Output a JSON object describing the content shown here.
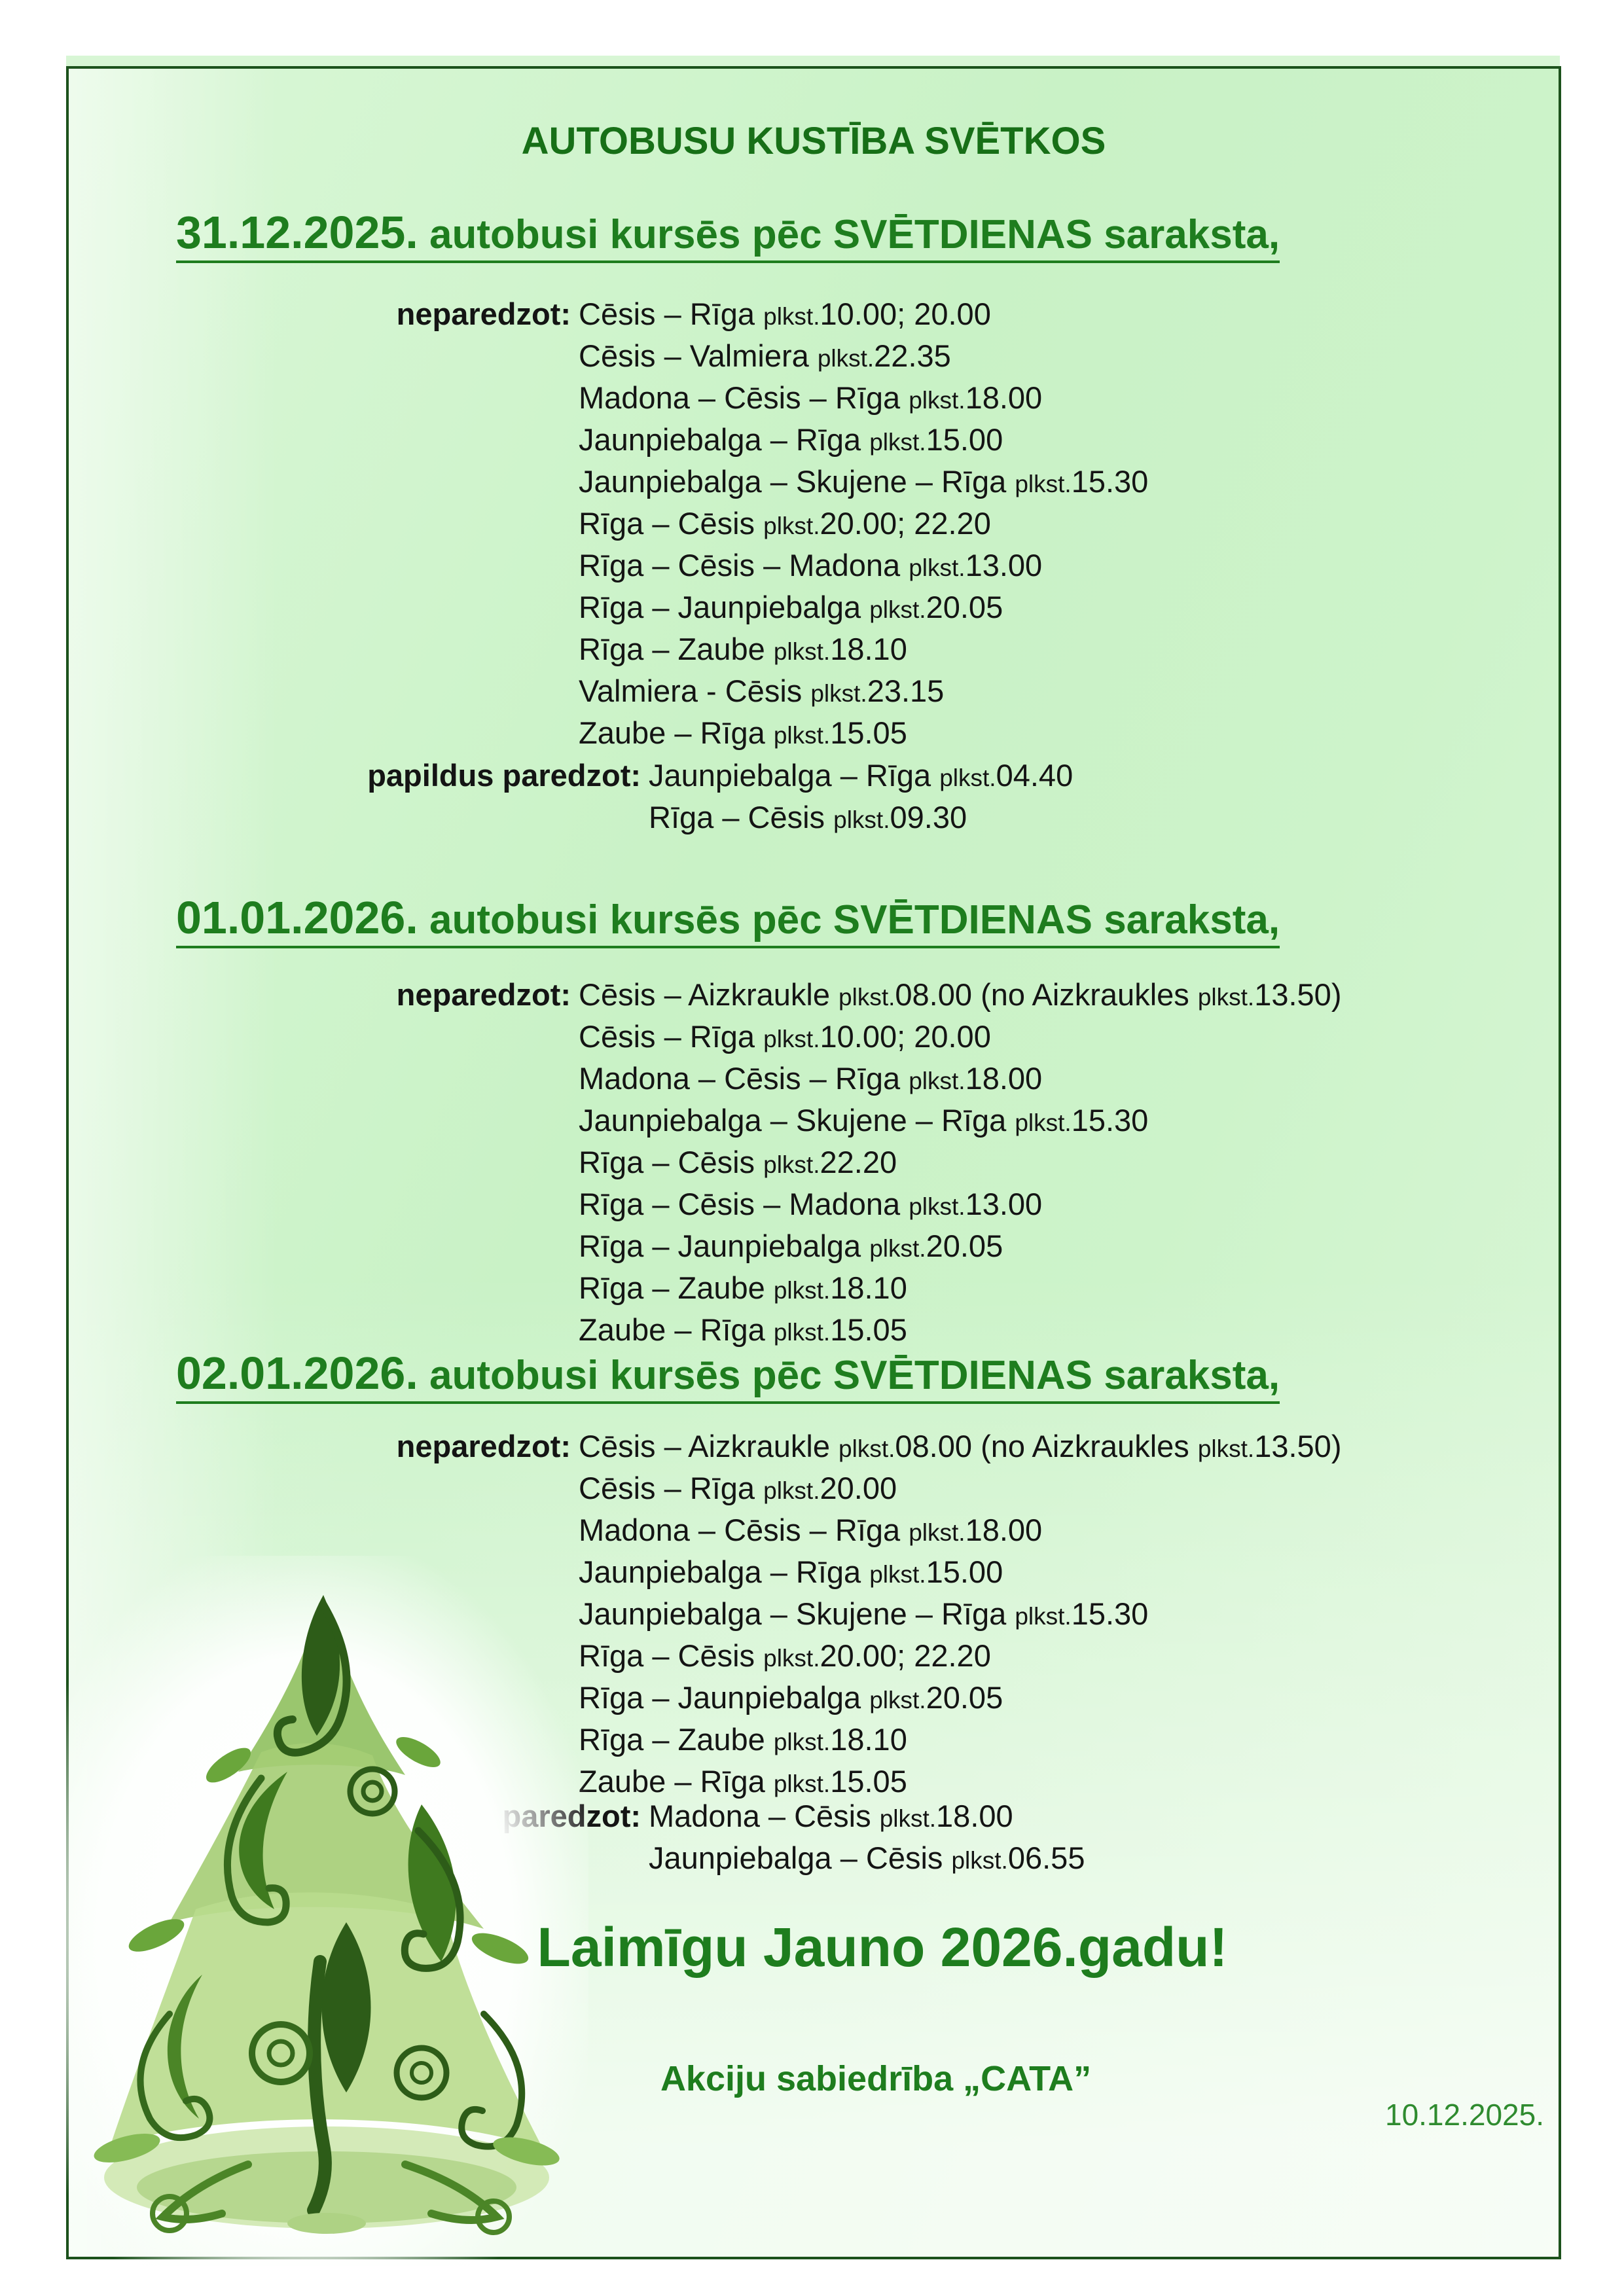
{
  "document": {
    "title": "AUTOBUSU KUSTĪBA SVĒTKOS",
    "greeting": "Laimīgu Jauno 2026.gadu!",
    "company": "Akciju sabiedrība „CATA”",
    "issue_date": "10.12.2025.",
    "unforeseen_label": "neparedzot:",
    "additional_label": "papildus paredzot:",
    "time_abbr": "plkst."
  },
  "sections": [
    {
      "heading_date": "31.12.2025.",
      "heading_text": " autobusi kursēs pēc SVĒTDIENAS saraksta,",
      "unforeseen": [
        "Cēsis – Rīga plkst.10.00; 20.00",
        "Cēsis – Valmiera plkst.22.35",
        "Madona – Cēsis – Rīga plkst.18.00",
        "Jaunpiebalga – Rīga plkst.15.00",
        "Jaunpiebalga – Skujene – Rīga plkst.15.30",
        "Rīga – Cēsis plkst.20.00; 22.20",
        "Rīga – Cēsis – Madona plkst.13.00",
        "Rīga – Jaunpiebalga plkst.20.05",
        "Rīga – Zaube plkst.18.10",
        "Valmiera - Cēsis plkst.23.15",
        "Zaube – Rīga plkst.15.05"
      ],
      "additional": [
        "Jaunpiebalga – Rīga plkst.04.40",
        "Rīga – Cēsis plkst.09.30"
      ]
    },
    {
      "heading_date": "01.01.2026.",
      "heading_text": " autobusi kursēs pēc SVĒTDIENAS saraksta,",
      "unforeseen": [
        "Cēsis – Aizkraukle plkst.08.00 (no Aizkraukles plkst.13.50)",
        "Cēsis – Rīga plkst.10.00; 20.00",
        "Madona – Cēsis – Rīga plkst.18.00",
        "Jaunpiebalga – Skujene – Rīga plkst.15.30",
        "Rīga – Cēsis plkst.22.20",
        "Rīga – Cēsis – Madona plkst.13.00",
        "Rīga – Jaunpiebalga plkst.20.05",
        "Rīga – Zaube plkst.18.10",
        "Zaube – Rīga plkst.15.05"
      ],
      "additional": []
    },
    {
      "heading_date": "02.01.2026.",
      "heading_text": " autobusi kursēs pēc SVĒTDIENAS saraksta,",
      "unforeseen": [
        "Cēsis – Aizkraukle plkst.08.00 (no Aizkraukles plkst.13.50)",
        "Cēsis – Rīga plkst.20.00",
        "Madona – Cēsis – Rīga plkst.18.00",
        "Jaunpiebalga – Rīga plkst.15.00",
        "Jaunpiebalga – Skujene – Rīga plkst.15.30",
        "Rīga – Cēsis plkst.20.00; 22.20",
        "Rīga – Jaunpiebalga plkst.20.05",
        "Rīga – Zaube plkst.18.10",
        "Zaube – Rīga plkst.15.05"
      ],
      "additional": [
        "Madona – Cēsis plkst.18.00",
        "Jaunpiebalga – Cēsis plkst.06.55"
      ]
    }
  ],
  "colors": {
    "accent_green": "#1e7d1e",
    "title_green": "#176f17",
    "border_green": "#1c521c",
    "date_green": "#2f8b2f",
    "background_green": "#cdf3ca",
    "body_text": "#141414"
  },
  "decorations": {
    "tree_image": "christmas-tree-swirl-illustration"
  }
}
